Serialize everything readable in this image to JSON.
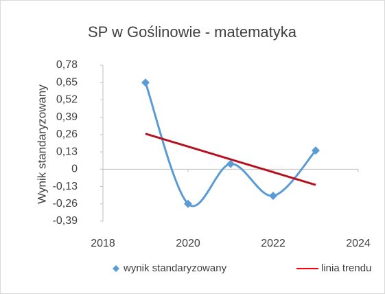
{
  "chart_data": {
    "type": "scatter",
    "title": "SP w Goślinowie - matematyka",
    "ylabel": "Wynik standaryzowany",
    "series": [
      {
        "name": "wynik standaryzowany",
        "color": "#5b9bd5",
        "x": [
          2019,
          2020,
          2021,
          2022,
          2023
        ],
        "values": [
          0.65,
          -0.26,
          0.04,
          -0.2,
          0.14
        ]
      },
      {
        "name": "linia trendu",
        "color": "#ff0000",
        "x": [
          2019,
          2023
        ],
        "values": [
          0.266,
          -0.118
        ]
      }
    ],
    "xlim": [
      2018,
      2024
    ],
    "xticks": [
      2018,
      2020,
      2022,
      2024
    ],
    "ylim": [
      -0.39,
      0.78
    ],
    "yticks": [
      {
        "value": -0.39,
        "label": "-0,39"
      },
      {
        "value": -0.26,
        "label": "-0,26"
      },
      {
        "value": -0.13,
        "label": "-0,13"
      },
      0,
      {
        "value": 0.13,
        "label": "0,13"
      },
      {
        "value": 0.26,
        "label": "0,26"
      },
      {
        "value": 0.39,
        "label": "0,39"
      },
      {
        "value": 0.52,
        "label": "0,52"
      },
      {
        "value": 0.65,
        "label": "0,65"
      },
      {
        "value": 0.78,
        "label": "0,78"
      }
    ],
    "legend": "bottom"
  }
}
